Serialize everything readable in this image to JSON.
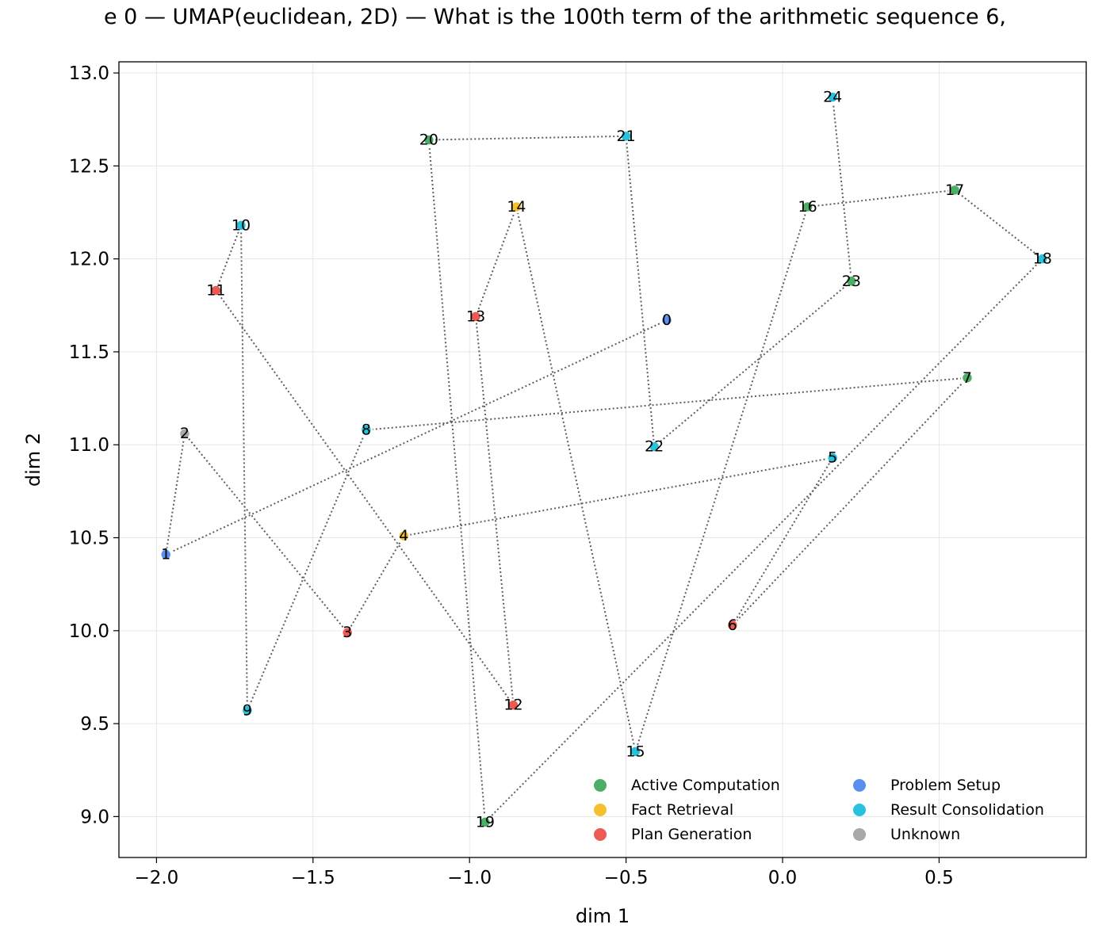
{
  "chart_data": {
    "type": "scatter",
    "title": "e 0 — UMAP(euclidean, 2D) — What is the 100th term of the arithmetic sequence 6,",
    "xlabel": "dim 1",
    "ylabel": "dim 2",
    "xlim": [
      -2.12,
      0.97
    ],
    "ylim": [
      8.78,
      13.06
    ],
    "xticks": [
      -2.0,
      -1.5,
      -1.0,
      -0.5,
      0.0,
      0.5
    ],
    "xtick_labels": [
      "−2.0",
      "−1.5",
      "−1.0",
      "−0.5",
      "0.0",
      "0.5"
    ],
    "yticks": [
      9.0,
      9.5,
      10.0,
      10.5,
      11.0,
      11.5,
      12.0,
      12.5,
      13.0
    ],
    "ytick_labels": [
      "9.0",
      "9.5",
      "10.0",
      "10.5",
      "11.0",
      "11.5",
      "12.0",
      "12.5",
      "13.0"
    ],
    "grid": true,
    "legend_position": "bottom-right",
    "path_connects_points_in_order": true,
    "categories": [
      {
        "name": "Active Computation",
        "color": "#4caf67"
      },
      {
        "name": "Fact Retrieval",
        "color": "#f6c02d"
      },
      {
        "name": "Plan Generation",
        "color": "#ec5a53"
      },
      {
        "name": "Problem Setup",
        "color": "#5a8fee"
      },
      {
        "name": "Result Consolidation",
        "color": "#28c2dc"
      },
      {
        "name": "Unknown",
        "color": "#a9a9a9"
      }
    ],
    "points": [
      {
        "label": "0",
        "x": -0.37,
        "y": 11.67,
        "category": "Problem Setup"
      },
      {
        "label": "1",
        "x": -1.97,
        "y": 10.41,
        "category": "Problem Setup"
      },
      {
        "label": "2",
        "x": -1.91,
        "y": 11.06,
        "category": "Unknown"
      },
      {
        "label": "3",
        "x": -1.39,
        "y": 9.99,
        "category": "Plan Generation"
      },
      {
        "label": "4",
        "x": -1.21,
        "y": 10.51,
        "category": "Fact Retrieval"
      },
      {
        "label": "5",
        "x": 0.16,
        "y": 10.93,
        "category": "Result Consolidation"
      },
      {
        "label": "6",
        "x": -0.16,
        "y": 10.03,
        "category": "Plan Generation"
      },
      {
        "label": "7",
        "x": 0.59,
        "y": 11.36,
        "category": "Active Computation"
      },
      {
        "label": "8",
        "x": -1.33,
        "y": 11.08,
        "category": "Result Consolidation"
      },
      {
        "label": "9",
        "x": -1.71,
        "y": 9.57,
        "category": "Result Consolidation"
      },
      {
        "label": "10",
        "x": -1.73,
        "y": 12.18,
        "category": "Result Consolidation"
      },
      {
        "label": "11",
        "x": -1.81,
        "y": 11.83,
        "category": "Plan Generation"
      },
      {
        "label": "12",
        "x": -0.86,
        "y": 9.6,
        "category": "Plan Generation"
      },
      {
        "label": "13",
        "x": -0.98,
        "y": 11.69,
        "category": "Plan Generation"
      },
      {
        "label": "14",
        "x": -0.85,
        "y": 12.28,
        "category": "Fact Retrieval"
      },
      {
        "label": "15",
        "x": -0.47,
        "y": 9.35,
        "category": "Result Consolidation"
      },
      {
        "label": "16",
        "x": 0.08,
        "y": 12.28,
        "category": "Active Computation"
      },
      {
        "label": "17",
        "x": 0.55,
        "y": 12.37,
        "category": "Active Computation"
      },
      {
        "label": "18",
        "x": 0.83,
        "y": 12.0,
        "category": "Result Consolidation"
      },
      {
        "label": "19",
        "x": -0.95,
        "y": 8.97,
        "category": "Active Computation"
      },
      {
        "label": "20",
        "x": -1.13,
        "y": 12.64,
        "category": "Active Computation"
      },
      {
        "label": "21",
        "x": -0.5,
        "y": 12.66,
        "category": "Result Consolidation"
      },
      {
        "label": "22",
        "x": -0.41,
        "y": 10.99,
        "category": "Result Consolidation"
      },
      {
        "label": "23",
        "x": 0.22,
        "y": 11.88,
        "category": "Active Computation"
      },
      {
        "label": "24",
        "x": 0.16,
        "y": 12.87,
        "category": "Result Consolidation"
      }
    ]
  }
}
